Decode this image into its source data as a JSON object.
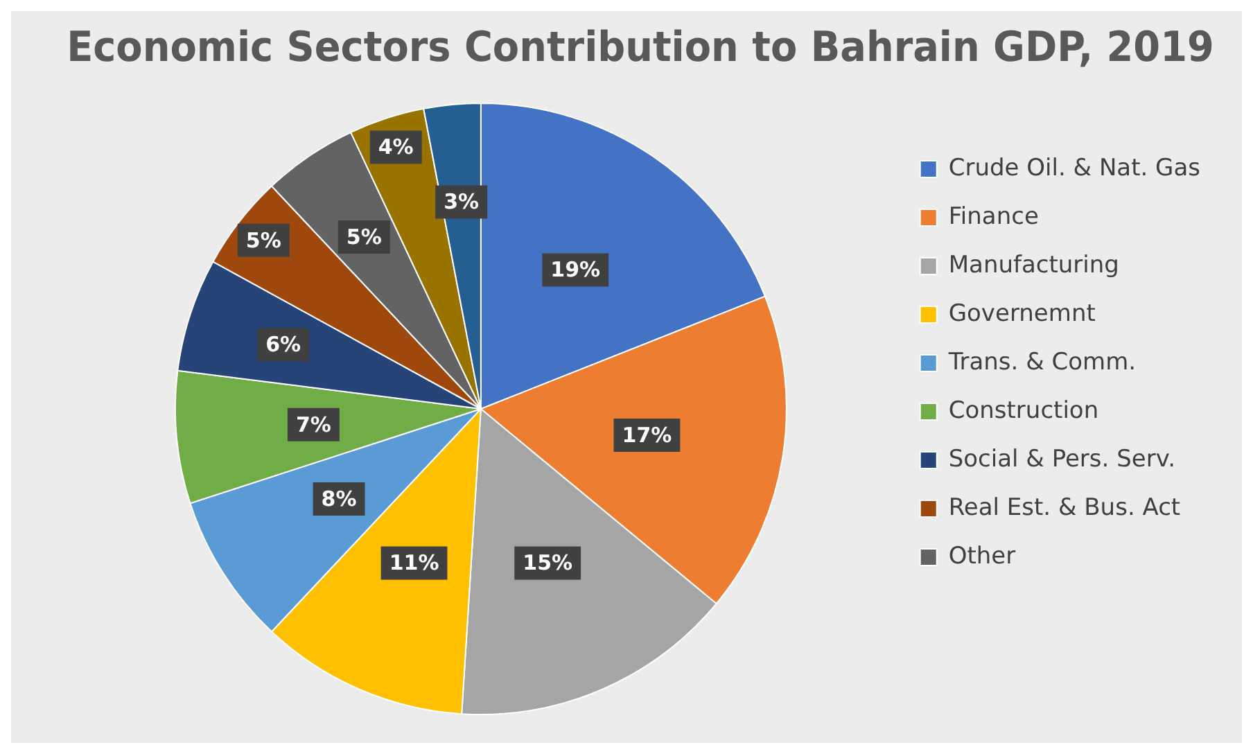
{
  "chart_data": {
    "type": "pie",
    "title": "Economic Sectors Contribution to Bahrain GDP, 2019",
    "categories": [
      "Crude Oil. & Nat. Gas",
      "Finance",
      "Manufacturing",
      "Governemnt",
      "Trans. & Comm.",
      "Construction",
      "Social & Pers. Serv.",
      "Real Est. & Bus. Act",
      "Other",
      null,
      null
    ],
    "values": [
      19,
      17,
      15,
      11,
      8,
      7,
      6,
      5,
      5,
      4,
      3
    ],
    "colors": [
      "#4472c4",
      "#ed7d31",
      "#a5a5a5",
      "#ffc000",
      "#5b9bd5",
      "#70ad47",
      "#264478",
      "#9e480e",
      "#636363",
      "#997300",
      "#255e91"
    ],
    "value_labels": [
      "19%",
      "17%",
      "15%",
      "11%",
      "8%",
      "7%",
      "6%",
      "5%",
      "5%",
      "4%",
      "3%"
    ],
    "legend": "right"
  }
}
